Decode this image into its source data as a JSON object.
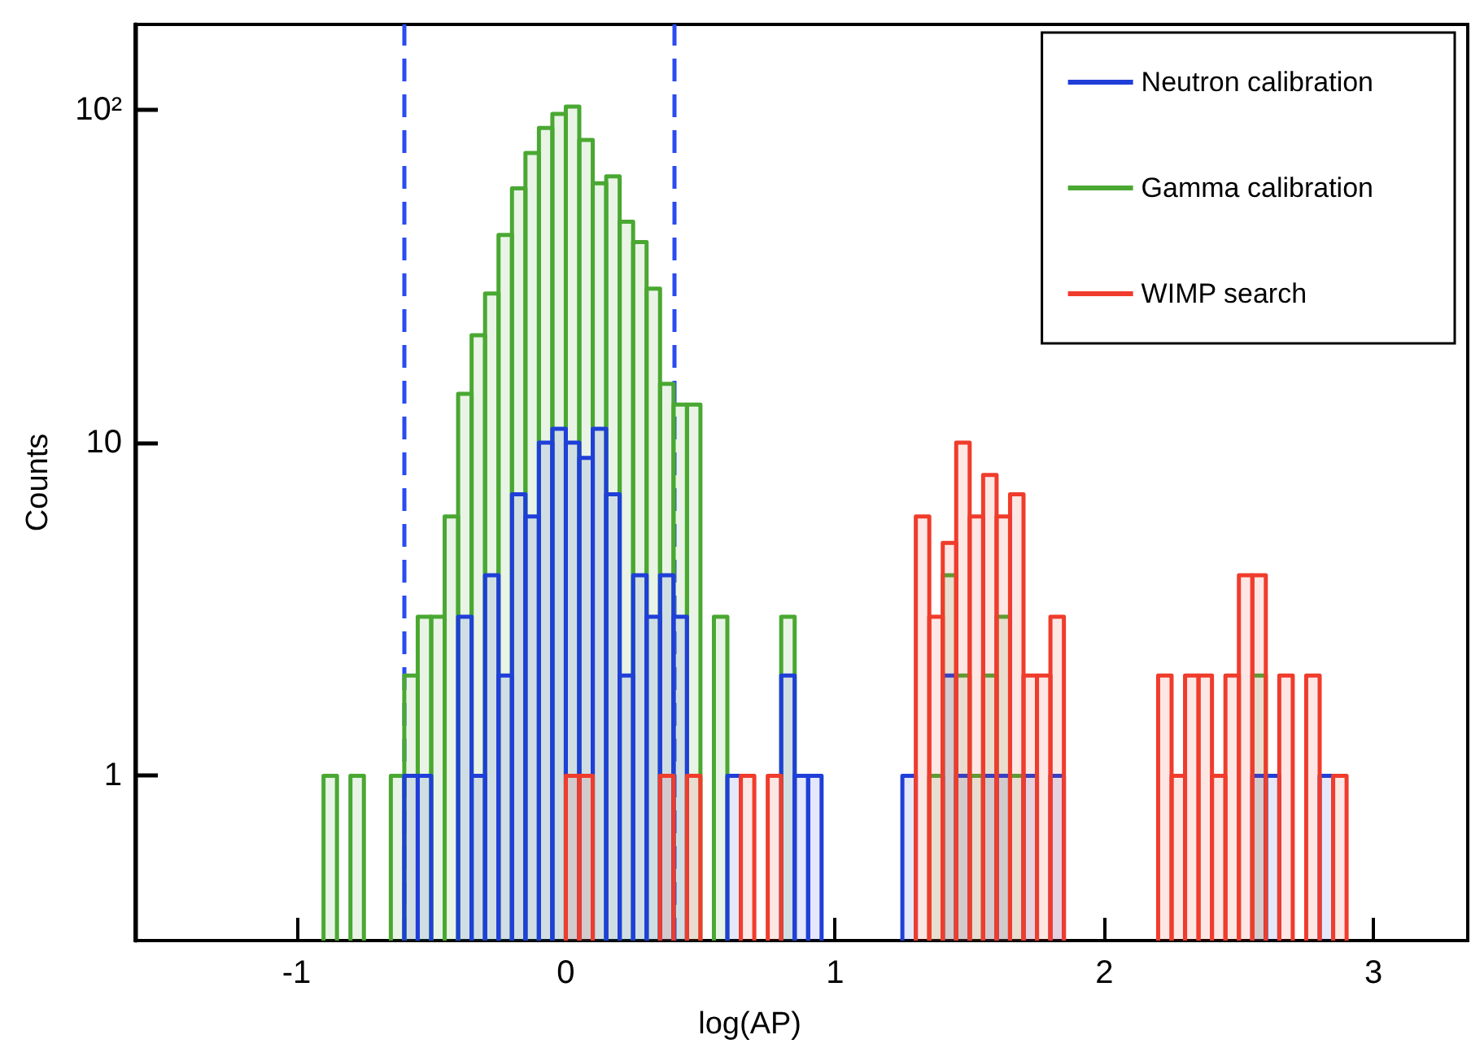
{
  "chart_data": {
    "type": "histogram",
    "xlabel": "log(AP)",
    "ylabel": "Counts",
    "bins": [
      -1.6,
      -1.55,
      -1.5,
      -1.45,
      -1.4,
      -1.35,
      -1.3,
      -1.25,
      -1.2,
      -1.15,
      -1.1,
      -1.05,
      -1.0,
      -0.95,
      -0.9,
      -0.85,
      -0.8,
      -0.75,
      -0.7,
      -0.65,
      -0.6,
      -0.55,
      -0.5,
      -0.45,
      -0.4,
      -0.35,
      -0.3,
      -0.25,
      -0.2,
      -0.15,
      -0.1,
      -0.05,
      0,
      0.05,
      0.1,
      0.15,
      0.2,
      0.25,
      0.3,
      0.35,
      0.4,
      0.45,
      0.5,
      0.55,
      0.6,
      0.65,
      0.7,
      0.75,
      0.8,
      0.85,
      0.9,
      0.95,
      1.0,
      1.05,
      1.1,
      1.15,
      1.2,
      1.25,
      1.3,
      1.35,
      1.4,
      1.45,
      1.5,
      1.55,
      1.6,
      1.65,
      1.7,
      1.75,
      1.8,
      1.85,
      1.9,
      1.95,
      2.0,
      2.05,
      2.1,
      2.15,
      2.2,
      2.25,
      2.3,
      2.35,
      2.4,
      2.45,
      2.5,
      2.55,
      2.6,
      2.65,
      2.7,
      2.75,
      2.8,
      2.85,
      2.9,
      2.95,
      3.0,
      3.05,
      3.1,
      3.15,
      3.2,
      3.25,
      3.3,
      3.35
    ],
    "series": [
      {
        "name": "Neutron calibration",
        "color": "#1f3fd8",
        "values": [
          null,
          null,
          null,
          null,
          null,
          null,
          null,
          null,
          null,
          null,
          null,
          null,
          null,
          null,
          null,
          null,
          null,
          null,
          null,
          null,
          1,
          1,
          null,
          null,
          3,
          1,
          4,
          2,
          7,
          6,
          10,
          11,
          10,
          9,
          11,
          7,
          2,
          4,
          3,
          4,
          3,
          null,
          null,
          null,
          1,
          null,
          null,
          null,
          2,
          1,
          1,
          null,
          null,
          null,
          null,
          null,
          null,
          1,
          null,
          null,
          2,
          1,
          null,
          1,
          1,
          null,
          1,
          null,
          1,
          null,
          null,
          null,
          null,
          null,
          null,
          null,
          null,
          null,
          null,
          null,
          null,
          null,
          null,
          1,
          1,
          null,
          null,
          null,
          1,
          null,
          null,
          null,
          null,
          null,
          null,
          null,
          null,
          null,
          null
        ]
      },
      {
        "name": "Gamma calibration",
        "color": "#4aa832",
        "values": [
          null,
          null,
          null,
          null,
          null,
          null,
          null,
          null,
          null,
          null,
          null,
          null,
          null,
          null,
          1,
          null,
          1,
          null,
          null,
          1,
          2,
          3,
          3,
          6,
          14,
          21,
          28,
          42,
          58,
          74,
          88,
          97,
          102,
          81,
          60,
          63,
          46,
          40,
          29,
          15,
          13,
          13,
          null,
          3,
          null,
          null,
          null,
          null,
          3,
          null,
          null,
          null,
          null,
          null,
          null,
          null,
          null,
          null,
          null,
          1,
          4,
          2,
          1,
          2,
          3,
          1,
          null,
          null,
          null,
          null,
          null,
          null,
          null,
          null,
          null,
          null,
          null,
          null,
          null,
          null,
          null,
          null,
          null,
          2,
          null,
          null,
          null,
          null,
          null,
          null,
          null,
          null,
          null,
          null,
          null,
          null,
          null,
          null,
          null
        ]
      },
      {
        "name": "WIMP search",
        "color": "#f03c2c",
        "values": [
          null,
          null,
          null,
          null,
          null,
          null,
          null,
          null,
          null,
          null,
          null,
          null,
          null,
          null,
          null,
          null,
          null,
          null,
          null,
          null,
          null,
          null,
          null,
          null,
          null,
          null,
          null,
          null,
          null,
          null,
          null,
          null,
          1,
          1,
          null,
          null,
          null,
          null,
          null,
          1,
          null,
          1,
          null,
          null,
          null,
          1,
          null,
          1,
          null,
          null,
          null,
          null,
          null,
          null,
          null,
          null,
          null,
          null,
          6,
          3,
          5,
          10,
          6,
          8,
          6,
          7,
          2,
          2,
          3,
          null,
          null,
          null,
          null,
          null,
          null,
          null,
          2,
          1,
          2,
          2,
          1,
          2,
          4,
          4,
          null,
          2,
          null,
          2,
          null,
          1,
          null,
          null,
          null,
          null,
          null,
          null,
          null,
          null,
          null
        ]
      }
    ],
    "xlim": [
      -1.6,
      3.35
    ],
    "xticks": [
      -1,
      0,
      1,
      2,
      3
    ],
    "ylim": [
      0.32,
      180
    ],
    "yticks": [
      1,
      10,
      {
        "value": 100,
        "label": "10²"
      }
    ],
    "log": "y",
    "grid": false,
    "legend": "top right",
    "ref_lines": [
      {
        "axis": "x",
        "value": -0.6,
        "label": null,
        "color": "#2a4bf0",
        "line_style": "dashed"
      },
      {
        "axis": "x",
        "value": 0.4,
        "label": null,
        "color": "#2a4bf0",
        "line_style": "dashed"
      }
    ]
  }
}
